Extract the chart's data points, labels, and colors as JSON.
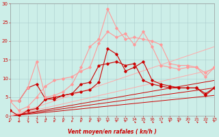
{
  "xlabel": "Vent moyen/en rafales ( kn/h )",
  "xlim": [
    0,
    23
  ],
  "ylim": [
    0,
    30
  ],
  "xticks": [
    0,
    1,
    2,
    3,
    4,
    5,
    6,
    7,
    8,
    9,
    10,
    11,
    12,
    13,
    14,
    15,
    16,
    17,
    18,
    19,
    20,
    21,
    22,
    23
  ],
  "yticks": [
    0,
    5,
    10,
    15,
    20,
    25,
    30
  ],
  "bg_color": "#cceee8",
  "grid_color": "#aacccc",
  "series": [
    {
      "x": [
        0,
        1,
        2,
        3,
        4,
        5,
        6,
        7,
        8,
        9,
        10,
        11,
        12,
        13,
        14,
        15,
        16,
        17,
        18,
        19,
        20,
        21,
        22,
        23
      ],
      "y": [
        1.5,
        0.0,
        1.5,
        2.0,
        4.5,
        5.0,
        5.5,
        6.0,
        6.5,
        7.0,
        9.0,
        18.0,
        16.5,
        12.0,
        13.0,
        14.5,
        9.5,
        8.5,
        8.0,
        7.5,
        7.5,
        7.5,
        6.0,
        7.5
      ],
      "color": "#cc0000",
      "lw": 0.8,
      "marker": "D",
      "ms": 1.8
    },
    {
      "x": [
        0,
        1,
        2,
        3,
        4,
        5,
        6,
        7,
        8,
        9,
        10,
        11,
        12,
        13,
        14,
        15,
        16,
        17,
        18,
        19,
        20,
        21,
        22,
        23
      ],
      "y": [
        4.0,
        4.0,
        7.5,
        8.5,
        4.5,
        4.5,
        5.5,
        6.0,
        8.5,
        9.0,
        13.5,
        14.0,
        14.5,
        13.5,
        14.0,
        9.5,
        8.5,
        8.0,
        7.5,
        7.5,
        7.5,
        7.5,
        5.5,
        7.5
      ],
      "color": "#cc0000",
      "lw": 0.8,
      "marker": "D",
      "ms": 1.8
    },
    {
      "x": [
        0,
        1,
        2,
        3,
        4,
        5,
        6,
        7,
        8,
        9,
        10,
        11,
        12,
        13,
        14,
        15,
        16,
        17,
        18,
        19,
        20,
        21,
        22,
        23
      ],
      "y": [
        4.0,
        1.5,
        2.5,
        5.0,
        8.0,
        9.5,
        10.0,
        10.5,
        12.0,
        13.0,
        19.5,
        22.5,
        21.0,
        22.0,
        19.0,
        22.5,
        18.5,
        13.5,
        13.0,
        12.5,
        13.0,
        13.0,
        10.5,
        13.0
      ],
      "color": "#ff9999",
      "lw": 0.8,
      "marker": "D",
      "ms": 1.8
    },
    {
      "x": [
        0,
        1,
        2,
        3,
        4,
        5,
        6,
        7,
        8,
        9,
        10,
        11,
        12,
        13,
        14,
        15,
        16,
        17,
        18,
        19,
        20,
        21,
        22,
        23
      ],
      "y": [
        4.0,
        4.0,
        7.5,
        14.5,
        5.0,
        5.5,
        6.5,
        8.5,
        13.0,
        18.5,
        20.5,
        28.5,
        23.5,
        20.5,
        21.0,
        20.5,
        20.0,
        19.0,
        14.0,
        13.5,
        13.5,
        13.0,
        11.5,
        13.0
      ],
      "color": "#ff9999",
      "lw": 0.8,
      "marker": "D",
      "ms": 1.8
    },
    {
      "x": [
        0,
        23
      ],
      "y": [
        0.0,
        5.5
      ],
      "color": "#cc0000",
      "lw": 0.7,
      "marker": null,
      "ms": 0
    },
    {
      "x": [
        0,
        23
      ],
      "y": [
        0.0,
        7.5
      ],
      "color": "#cc0000",
      "lw": 0.7,
      "marker": null,
      "ms": 0
    },
    {
      "x": [
        0,
        23
      ],
      "y": [
        0.0,
        9.5
      ],
      "color": "#cc0000",
      "lw": 0.7,
      "marker": null,
      "ms": 0
    },
    {
      "x": [
        0,
        23
      ],
      "y": [
        0.0,
        12.5
      ],
      "color": "#ffaaaa",
      "lw": 0.7,
      "marker": null,
      "ms": 0
    },
    {
      "x": [
        0,
        23
      ],
      "y": [
        0.0,
        18.5
      ],
      "color": "#ffaaaa",
      "lw": 0.7,
      "marker": null,
      "ms": 0
    }
  ],
  "arrow_angles_deg": [
    50,
    270,
    225,
    210,
    195,
    195,
    195,
    195,
    195,
    195,
    195,
    195,
    195,
    195,
    210,
    210,
    210,
    210,
    195,
    195,
    210,
    210,
    210,
    195
  ],
  "arrow_color": "#cc0000"
}
